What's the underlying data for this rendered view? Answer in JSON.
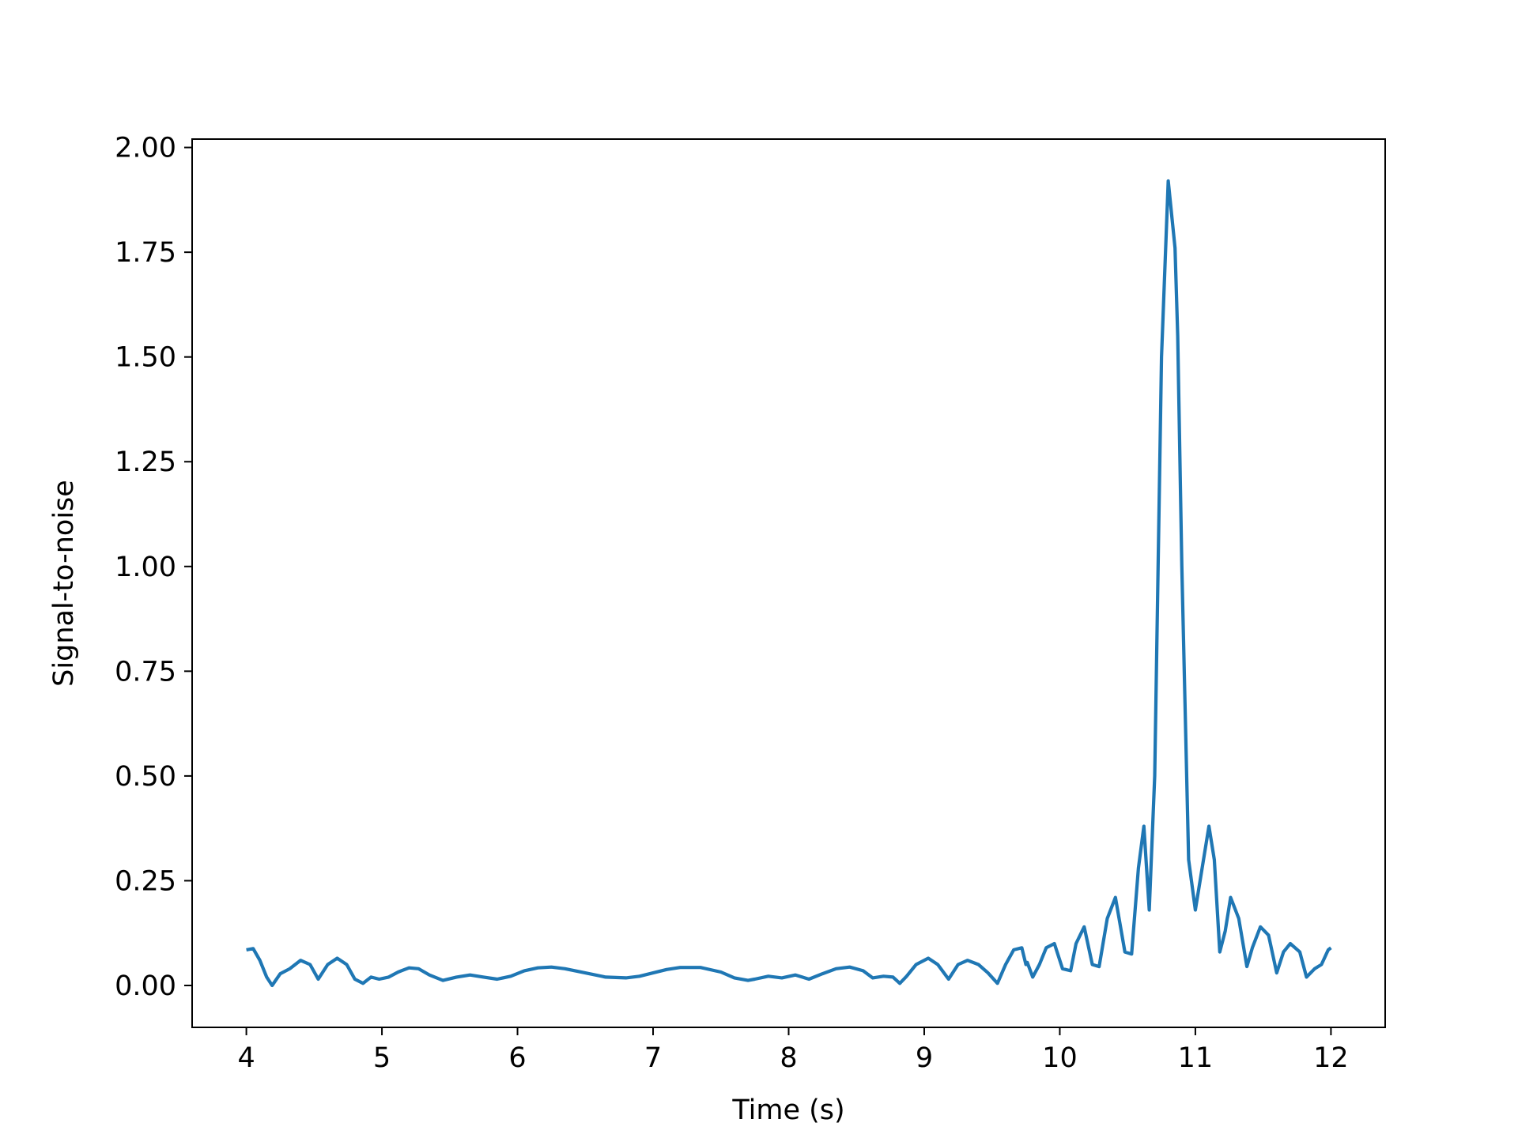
{
  "chart_data": {
    "type": "line",
    "title": "",
    "xlabel": "Time (s)",
    "ylabel": "Signal-to-noise",
    "xlim": [
      3.6,
      12.4
    ],
    "ylim": [
      -0.1,
      2.02
    ],
    "grid": false,
    "legend": null,
    "line_color": "#1f77b4",
    "xticks": [
      4,
      5,
      6,
      7,
      8,
      9,
      10,
      11,
      12
    ],
    "xtick_labels": [
      "4",
      "5",
      "6",
      "7",
      "8",
      "9",
      "10",
      "11",
      "12"
    ],
    "yticks": [
      0.0,
      0.25,
      0.5,
      0.75,
      1.0,
      1.25,
      1.5,
      1.75,
      2.0
    ],
    "ytick_labels": [
      "0.00",
      "0.25",
      "0.50",
      "0.75",
      "1.00",
      "1.25",
      "1.50",
      "1.75",
      "2.00"
    ],
    "series": [
      {
        "x": [
          4.0,
          4.05,
          4.1,
          4.15,
          4.19,
          4.25,
          4.32,
          4.4,
          4.47,
          4.53,
          4.6,
          4.67,
          4.74,
          4.8,
          4.86,
          4.92,
          4.98,
          5.05,
          5.12,
          5.2,
          5.27,
          5.35,
          5.45,
          5.55,
          5.65,
          5.75,
          5.85,
          5.95,
          6.05,
          6.15,
          6.25,
          6.35,
          6.5,
          6.65,
          6.8,
          6.9,
          7.0,
          7.1,
          7.2,
          7.35,
          7.5,
          7.6,
          7.7,
          7.75,
          7.85,
          7.95,
          8.05,
          8.15,
          8.25,
          8.35,
          8.45,
          8.55,
          8.62,
          8.7,
          8.77,
          8.82,
          8.87,
          8.94,
          9.03,
          9.1,
          9.18,
          9.25,
          9.32,
          9.4,
          9.47,
          9.54,
          9.6,
          9.66,
          9.72,
          9.75,
          9.76,
          9.8,
          9.85,
          9.9,
          9.96,
          10.02,
          10.08,
          10.12,
          10.18,
          10.24,
          10.29,
          10.35,
          10.41,
          10.48,
          10.53,
          10.58,
          10.62,
          10.66,
          10.7,
          10.75,
          10.8,
          10.85,
          10.87,
          10.9,
          10.95,
          11.0,
          11.06,
          11.1,
          11.14,
          11.18,
          11.22,
          11.26,
          11.32,
          11.38,
          11.42,
          11.48,
          11.54,
          11.6,
          11.65,
          11.7,
          11.77,
          11.82,
          11.88,
          11.93,
          11.98,
          12.0
        ],
        "y": [
          0.085,
          0.088,
          0.06,
          0.02,
          0.0,
          0.028,
          0.04,
          0.06,
          0.05,
          0.015,
          0.05,
          0.065,
          0.05,
          0.015,
          0.005,
          0.02,
          0.015,
          0.02,
          0.032,
          0.042,
          0.04,
          0.025,
          0.012,
          0.02,
          0.025,
          0.02,
          0.015,
          0.022,
          0.035,
          0.042,
          0.044,
          0.04,
          0.03,
          0.02,
          0.018,
          0.022,
          0.03,
          0.038,
          0.043,
          0.043,
          0.032,
          0.018,
          0.012,
          0.015,
          0.022,
          0.018,
          0.025,
          0.015,
          0.028,
          0.04,
          0.044,
          0.035,
          0.018,
          0.022,
          0.02,
          0.005,
          0.022,
          0.05,
          0.065,
          0.05,
          0.015,
          0.05,
          0.06,
          0.05,
          0.03,
          0.005,
          0.05,
          0.085,
          0.09,
          0.05,
          0.055,
          0.02,
          0.05,
          0.09,
          0.1,
          0.04,
          0.035,
          0.1,
          0.14,
          0.05,
          0.045,
          0.16,
          0.21,
          0.08,
          0.075,
          0.28,
          0.38,
          0.18,
          0.5,
          1.5,
          1.92,
          1.76,
          1.55,
          1.0,
          0.3,
          0.18,
          0.3,
          0.38,
          0.3,
          0.08,
          0.13,
          0.21,
          0.16,
          0.045,
          0.09,
          0.14,
          0.12,
          0.03,
          0.08,
          0.1,
          0.08,
          0.02,
          0.04,
          0.05,
          0.085,
          0.09
        ]
      }
    ]
  }
}
